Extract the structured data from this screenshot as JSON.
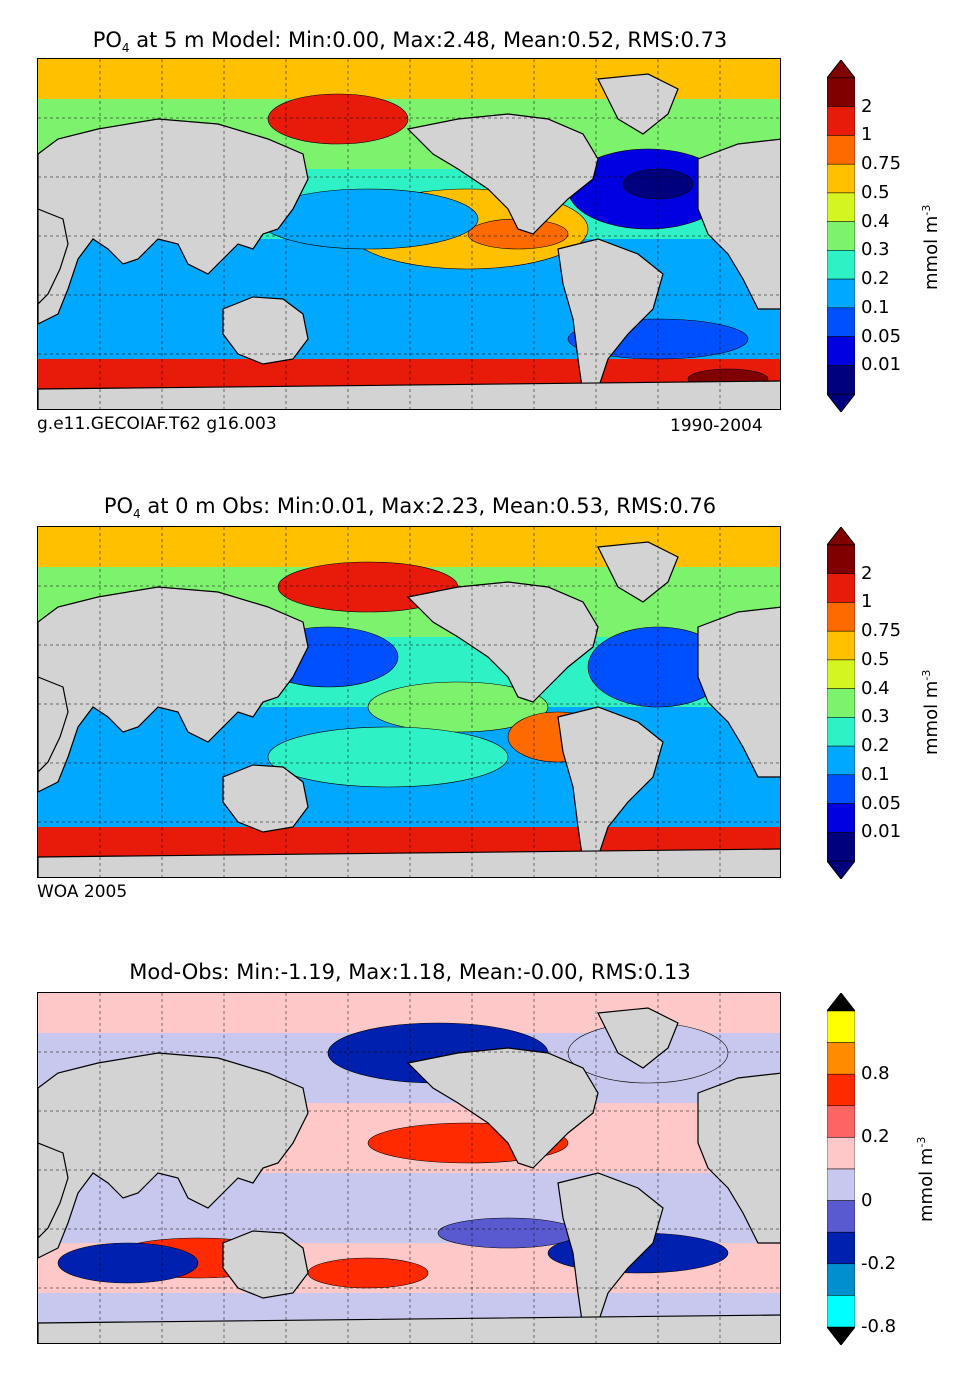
{
  "panels": [
    {
      "title_pre": "PO",
      "title_sub": "4",
      "title_post": " at 5 m Model: Min:0.00, Max:2.48, Mean:0.52, RMS:0.73",
      "note_left": "g.e11.GECOIAF.T62 g16.003",
      "note_right": "1990-2004",
      "colorbar": {
        "unit": "mmol m",
        "unit_sup": "-3",
        "labels": [
          "2",
          "1",
          "0.75",
          "0.5",
          "0.4",
          "0.3",
          "0.2",
          "0.1",
          "0.05",
          "0.01"
        ],
        "colors": [
          "#800000",
          "#e81a0a",
          "#ff6a00",
          "#ffc000",
          "#d4f520",
          "#7df26d",
          "#2ef2c6",
          "#00a8ff",
          "#0050ff",
          "#0000e0",
          "#00007f"
        ],
        "extend_top": "#800000",
        "extend_bottom": "#00007f"
      }
    },
    {
      "title_pre": "PO",
      "title_sub": "4",
      "title_post": " at 0 m Obs: Min:0.01, Max:2.23, Mean:0.53, RMS:0.76",
      "note_left": "WOA 2005",
      "note_right": "",
      "colorbar": {
        "unit": "mmol m",
        "unit_sup": "-3",
        "labels": [
          "2",
          "1",
          "0.75",
          "0.5",
          "0.4",
          "0.3",
          "0.2",
          "0.1",
          "0.05",
          "0.01"
        ],
        "colors": [
          "#800000",
          "#e81a0a",
          "#ff6a00",
          "#ffc000",
          "#d4f520",
          "#7df26d",
          "#2ef2c6",
          "#00a8ff",
          "#0050ff",
          "#0000e0",
          "#00007f"
        ],
        "extend_top": "#800000",
        "extend_bottom": "#00007f"
      }
    },
    {
      "title_pre": "",
      "title_sub": "",
      "title_post": "Mod-Obs: Min:-1.19, Max:1.18, Mean:-0.00, RMS:0.13",
      "note_left": "",
      "note_right": "",
      "colorbar": {
        "unit": "mmol m",
        "unit_sup": "-3",
        "labels": [
          "0.8",
          "0.2",
          "0",
          "-0.2",
          "-0.8"
        ],
        "colors": [
          "#ffff00",
          "#ff8c00",
          "#ff2a00",
          "#ff6464",
          "#ffc8c8",
          "#c8c8ee",
          "#5a5ad0",
          "#0020b0",
          "#0090d0",
          "#00ffff"
        ],
        "extend_top": "#000000",
        "extend_bottom": "#000000"
      }
    }
  ],
  "colors": {
    "land": "#d3d3d3",
    "model_ocean_sequence": [
      "#e81a0a",
      "#ffc000",
      "#2ef2c6",
      "#00a8ff",
      "#0000e0"
    ],
    "diff_ocean_sequence": [
      "#c8c8ee",
      "#ffc8c8",
      "#ff2a00",
      "#0020b0"
    ]
  }
}
